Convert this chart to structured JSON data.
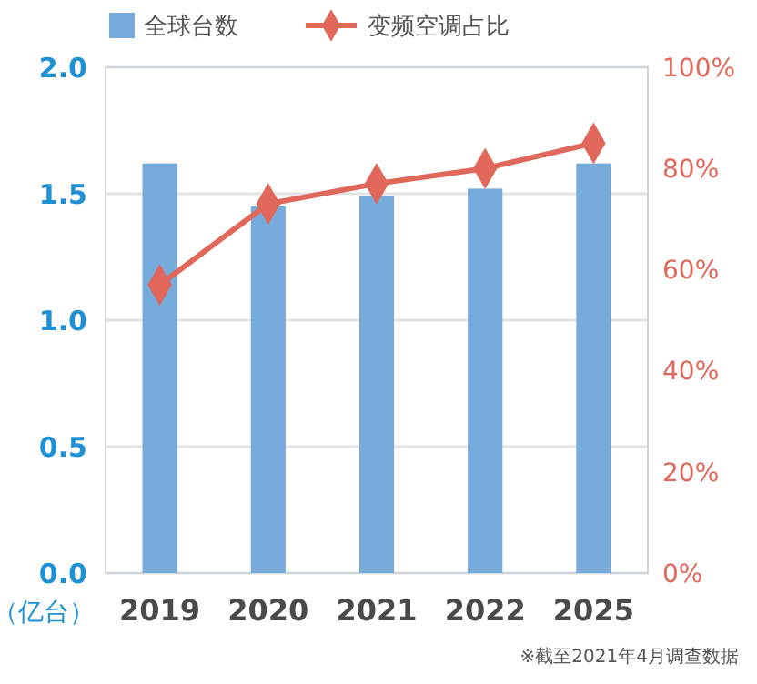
{
  "chart_data": {
    "type": "bar",
    "categories": [
      "2019",
      "2020",
      "2021",
      "2022",
      "2025"
    ],
    "series": [
      {
        "name": "全球台数",
        "color": "#76abdc",
        "values": [
          1.62,
          1.45,
          1.49,
          1.52,
          1.62
        ]
      },
      {
        "name": "变频空调占比",
        "type": "line",
        "axis": "y2",
        "color": "#e0675a",
        "marker": "diamond",
        "values": [
          57,
          73,
          77,
          80,
          85
        ]
      }
    ],
    "ylim": [
      0,
      2
    ],
    "yticks": [
      {
        "value": 0,
        "label": "0.0"
      },
      {
        "value": 0.5,
        "label": "0.5"
      },
      {
        "value": 1,
        "label": "1.0"
      },
      {
        "value": 1.5,
        "label": "1.5"
      },
      {
        "value": 2,
        "label": "2.0"
      }
    ],
    "y2lim": [
      0,
      100
    ],
    "y2ticks": [
      {
        "value": 0,
        "label": "0%"
      },
      {
        "value": 20,
        "label": "20%"
      },
      {
        "value": 40,
        "label": "40%"
      },
      {
        "value": 60,
        "label": "60%"
      },
      {
        "value": 80,
        "label": "80%"
      },
      {
        "value": 100,
        "label": "100%"
      }
    ],
    "ylabel": "（亿台）",
    "grid": "y",
    "legend": "top",
    "annotations": [
      "※截至2021年4月调查数据"
    ]
  }
}
